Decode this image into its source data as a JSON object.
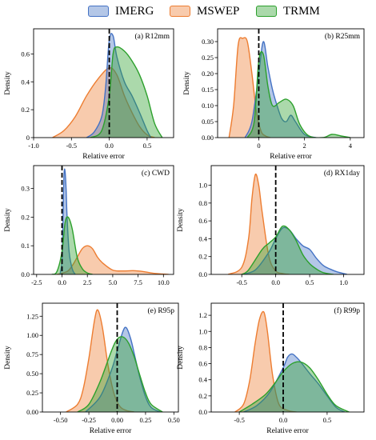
{
  "legend": {
    "items": [
      {
        "label": "IMERG",
        "color": "#4472c4"
      },
      {
        "label": "MSWEP",
        "color": "#ed7d31"
      },
      {
        "label": "TRMM",
        "color": "#2ca02c"
      }
    ]
  },
  "chart_data": [
    {
      "type": "area",
      "title": "(a) R12mm",
      "xlabel": "Relative error",
      "ylabel": "Density",
      "xlim": [
        -1.0,
        0.85
      ],
      "ylim": [
        0,
        0.78
      ],
      "xticks": [
        -1.0,
        -0.5,
        0.0,
        0.5
      ],
      "xtick_labels": [
        "-1.0",
        "-0.5",
        "0.0",
        "0.5"
      ],
      "yticks": [
        0,
        0.2,
        0.4,
        0.6
      ],
      "ytick_labels": [
        "0",
        "0.2",
        "0.4",
        "0.6"
      ],
      "vline": 0.0,
      "series": [
        {
          "name": "IMERG",
          "x": [
            -0.3,
            -0.2,
            -0.1,
            -0.05,
            0.0,
            0.05,
            0.1,
            0.2,
            0.3,
            0.4,
            0.5,
            0.55
          ],
          "y": [
            0,
            0.04,
            0.15,
            0.35,
            0.7,
            0.73,
            0.58,
            0.4,
            0.3,
            0.18,
            0.05,
            0
          ]
        },
        {
          "name": "MSWEP",
          "x": [
            -0.75,
            -0.6,
            -0.45,
            -0.3,
            -0.15,
            0.0,
            0.1,
            0.2,
            0.3,
            0.4,
            0.5,
            0.6
          ],
          "y": [
            0,
            0.05,
            0.15,
            0.3,
            0.42,
            0.5,
            0.45,
            0.3,
            0.18,
            0.08,
            0.02,
            0
          ]
        },
        {
          "name": "TRMM",
          "x": [
            -0.25,
            -0.1,
            0.0,
            0.05,
            0.1,
            0.2,
            0.3,
            0.4,
            0.5,
            0.6,
            0.7
          ],
          "y": [
            0,
            0.05,
            0.3,
            0.6,
            0.65,
            0.62,
            0.55,
            0.45,
            0.3,
            0.1,
            0
          ]
        }
      ]
    },
    {
      "type": "area",
      "title": "(b) R25mm",
      "xlabel": "Relative error",
      "ylabel": "Density",
      "xlim": [
        -1.8,
        4.6
      ],
      "ylim": [
        0,
        0.34
      ],
      "xticks": [
        0,
        2,
        4
      ],
      "xtick_labels": [
        "0",
        "2",
        "4"
      ],
      "yticks": [
        0,
        0.05,
        0.1,
        0.15,
        0.2,
        0.25,
        0.3
      ],
      "ytick_labels": [
        "0.00",
        "0.05",
        "0.10",
        "0.15",
        "0.20",
        "0.25",
        "0.30"
      ],
      "vline": 0.0,
      "series": [
        {
          "name": "IMERG",
          "x": [
            -0.6,
            -0.3,
            0.0,
            0.2,
            0.4,
            0.6,
            0.8,
            1.0,
            1.2,
            1.4,
            1.6,
            2.0,
            2.5
          ],
          "y": [
            0,
            0.05,
            0.2,
            0.3,
            0.22,
            0.15,
            0.1,
            0.06,
            0.05,
            0.07,
            0.05,
            0.01,
            0
          ]
        },
        {
          "name": "MSWEP",
          "x": [
            -1.3,
            -1.1,
            -0.9,
            -0.7,
            -0.5,
            -0.3,
            -0.1,
            0.1,
            0.3,
            0.5
          ],
          "y": [
            0,
            0.1,
            0.29,
            0.31,
            0.3,
            0.2,
            0.08,
            0.02,
            0.005,
            0
          ]
        },
        {
          "name": "TRMM",
          "x": [
            -0.5,
            -0.2,
            0.0,
            0.2,
            0.4,
            0.6,
            0.9,
            1.2,
            1.5,
            1.8,
            2.2,
            2.8,
            3.2,
            3.6,
            4.0
          ],
          "y": [
            0,
            0.05,
            0.24,
            0.26,
            0.16,
            0.1,
            0.11,
            0.12,
            0.1,
            0.04,
            0.005,
            0,
            0.01,
            0.005,
            0
          ]
        }
      ]
    },
    {
      "type": "area",
      "title": "(c) CWD",
      "xlabel": "",
      "ylabel": "Density",
      "xlim": [
        -2.8,
        11.0
      ],
      "ylim": [
        0,
        0.38
      ],
      "xticks": [
        -2.5,
        0,
        2.5,
        5,
        7.5,
        10
      ],
      "xtick_labels": [
        "-2.5",
        "0.0",
        "2.5",
        "5.0",
        "7.5",
        "10.0"
      ],
      "yticks": [
        0,
        0.1,
        0.2,
        0.3
      ],
      "ytick_labels": [
        "0.0",
        "0.1",
        "0.2",
        "0.3"
      ],
      "vline": 0.0,
      "series": [
        {
          "name": "IMERG",
          "x": [
            -0.2,
            0.0,
            0.1,
            0.2,
            0.3,
            0.4,
            0.5,
            0.7,
            1.0,
            1.3
          ],
          "y": [
            0,
            0.05,
            0.2,
            0.35,
            0.36,
            0.3,
            0.2,
            0.08,
            0.02,
            0
          ]
        },
        {
          "name": "MSWEP",
          "x": [
            -0.5,
            0.5,
            1.0,
            1.5,
            2.0,
            2.5,
            3.0,
            3.5,
            4.0,
            5.0,
            6.0,
            7.0,
            8.0,
            9.0,
            10.5
          ],
          "y": [
            0,
            0.01,
            0.03,
            0.06,
            0.09,
            0.1,
            0.09,
            0.06,
            0.04,
            0.015,
            0.012,
            0.013,
            0.01,
            0.004,
            0
          ]
        },
        {
          "name": "TRMM",
          "x": [
            -1.0,
            -0.5,
            0.0,
            0.3,
            0.6,
            1.0,
            1.5,
            2.0,
            2.5,
            3.0
          ],
          "y": [
            0,
            0.01,
            0.08,
            0.18,
            0.2,
            0.16,
            0.06,
            0.02,
            0.005,
            0
          ]
        }
      ]
    },
    {
      "type": "area",
      "title": "(d) RX1day",
      "xlabel": "",
      "ylabel": "Density",
      "xlim": [
        -0.95,
        1.3
      ],
      "ylim": [
        0,
        1.22
      ],
      "xticks": [
        -0.5,
        0,
        0.5,
        1.0
      ],
      "xtick_labels": [
        "-0.5",
        "0.0",
        "0.5",
        "1.0"
      ],
      "yticks": [
        0,
        0.2,
        0.4,
        0.6,
        0.8,
        1.0
      ],
      "ytick_labels": [
        "0.0",
        "0.2",
        "0.4",
        "0.6",
        "0.8",
        "1.0"
      ],
      "vline": 0.0,
      "series": [
        {
          "name": "IMERG",
          "x": [
            -0.5,
            -0.3,
            -0.1,
            0.0,
            0.1,
            0.2,
            0.3,
            0.4,
            0.5,
            0.6,
            0.7,
            0.8,
            0.9,
            1.05
          ],
          "y": [
            0,
            0.05,
            0.25,
            0.4,
            0.52,
            0.5,
            0.4,
            0.32,
            0.28,
            0.18,
            0.1,
            0.06,
            0.03,
            0
          ]
        },
        {
          "name": "MSWEP",
          "x": [
            -0.7,
            -0.5,
            -0.4,
            -0.35,
            -0.3,
            -0.25,
            -0.2,
            -0.1,
            0.0,
            0.1,
            0.2
          ],
          "y": [
            0,
            0.08,
            0.4,
            0.85,
            1.12,
            1.0,
            0.7,
            0.2,
            0.04,
            0.01,
            0
          ]
        },
        {
          "name": "TRMM",
          "x": [
            -0.5,
            -0.4,
            -0.2,
            -0.1,
            0.0,
            0.1,
            0.2,
            0.3,
            0.4,
            0.5,
            0.6,
            0.7,
            0.85
          ],
          "y": [
            0,
            0.05,
            0.28,
            0.35,
            0.42,
            0.54,
            0.5,
            0.38,
            0.22,
            0.12,
            0.06,
            0.02,
            0
          ]
        }
      ]
    },
    {
      "type": "area",
      "title": "(e) R95p",
      "xlabel": "Relative error",
      "ylabel": "Density",
      "xlim": [
        -0.66,
        0.54
      ],
      "ylim": [
        0,
        1.42
      ],
      "xticks": [
        -0.5,
        -0.25,
        0,
        0.25,
        0.5
      ],
      "xtick_labels": [
        "-0.50",
        "-0.25",
        "0.00",
        "0.25",
        "0.50"
      ],
      "yticks": [
        0,
        0.25,
        0.5,
        0.75,
        1.0,
        1.25
      ],
      "ytick_labels": [
        "0.00",
        "0.25",
        "0.50",
        "0.75",
        "1.00",
        "1.25"
      ],
      "vline": 0.0,
      "series": [
        {
          "name": "IMERG",
          "x": [
            -0.28,
            -0.15,
            -0.05,
            0.0,
            0.05,
            0.08,
            0.12,
            0.16,
            0.2,
            0.25,
            0.3,
            0.38
          ],
          "y": [
            0,
            0.2,
            0.55,
            0.8,
            1.05,
            1.1,
            0.95,
            0.7,
            0.45,
            0.2,
            0.06,
            0
          ]
        },
        {
          "name": "MSWEP",
          "x": [
            -0.45,
            -0.35,
            -0.3,
            -0.25,
            -0.2,
            -0.17,
            -0.13,
            -0.08,
            -0.03,
            0.02,
            0.08,
            0.15
          ],
          "y": [
            0,
            0.1,
            0.3,
            0.7,
            1.2,
            1.33,
            1.1,
            0.6,
            0.25,
            0.08,
            0.02,
            0
          ]
        },
        {
          "name": "TRMM",
          "x": [
            -0.35,
            -0.25,
            -0.15,
            -0.05,
            0.0,
            0.05,
            0.1,
            0.15,
            0.2,
            0.25,
            0.3,
            0.4
          ],
          "y": [
            0,
            0.1,
            0.4,
            0.8,
            0.95,
            0.98,
            0.9,
            0.72,
            0.48,
            0.25,
            0.1,
            0
          ]
        }
      ]
    },
    {
      "type": "area",
      "title": "(f) R99p",
      "xlabel": "Relative error",
      "ylabel": "Density",
      "xlim": [
        -0.82,
        0.92
      ],
      "ylim": [
        0,
        1.35
      ],
      "xticks": [
        -0.5,
        0,
        0.5
      ],
      "xtick_labels": [
        "-0.5",
        "0.0",
        "0.5"
      ],
      "yticks": [
        0,
        0.2,
        0.4,
        0.6,
        0.8,
        1.0,
        1.2
      ],
      "ytick_labels": [
        "0.0",
        "0.2",
        "0.4",
        "0.6",
        "0.8",
        "1.0",
        "1.2"
      ],
      "vline": 0.0,
      "series": [
        {
          "name": "IMERG",
          "x": [
            -0.45,
            -0.3,
            -0.15,
            0.0,
            0.05,
            0.1,
            0.15,
            0.2,
            0.3,
            0.4,
            0.5,
            0.6,
            0.7
          ],
          "y": [
            0,
            0.08,
            0.25,
            0.55,
            0.68,
            0.72,
            0.68,
            0.62,
            0.48,
            0.35,
            0.2,
            0.06,
            0
          ]
        },
        {
          "name": "MSWEP",
          "x": [
            -0.55,
            -0.45,
            -0.38,
            -0.32,
            -0.27,
            -0.22,
            -0.18,
            -0.12,
            -0.05,
            0.05,
            0.15
          ],
          "y": [
            0,
            0.1,
            0.4,
            0.85,
            1.15,
            1.24,
            1.0,
            0.45,
            0.1,
            0.02,
            0
          ]
        },
        {
          "name": "TRMM",
          "x": [
            -0.5,
            -0.35,
            -0.2,
            -0.1,
            0.0,
            0.1,
            0.2,
            0.3,
            0.4,
            0.5,
            0.6,
            0.75
          ],
          "y": [
            0,
            0.1,
            0.22,
            0.35,
            0.5,
            0.6,
            0.62,
            0.55,
            0.4,
            0.22,
            0.08,
            0
          ]
        }
      ]
    }
  ]
}
